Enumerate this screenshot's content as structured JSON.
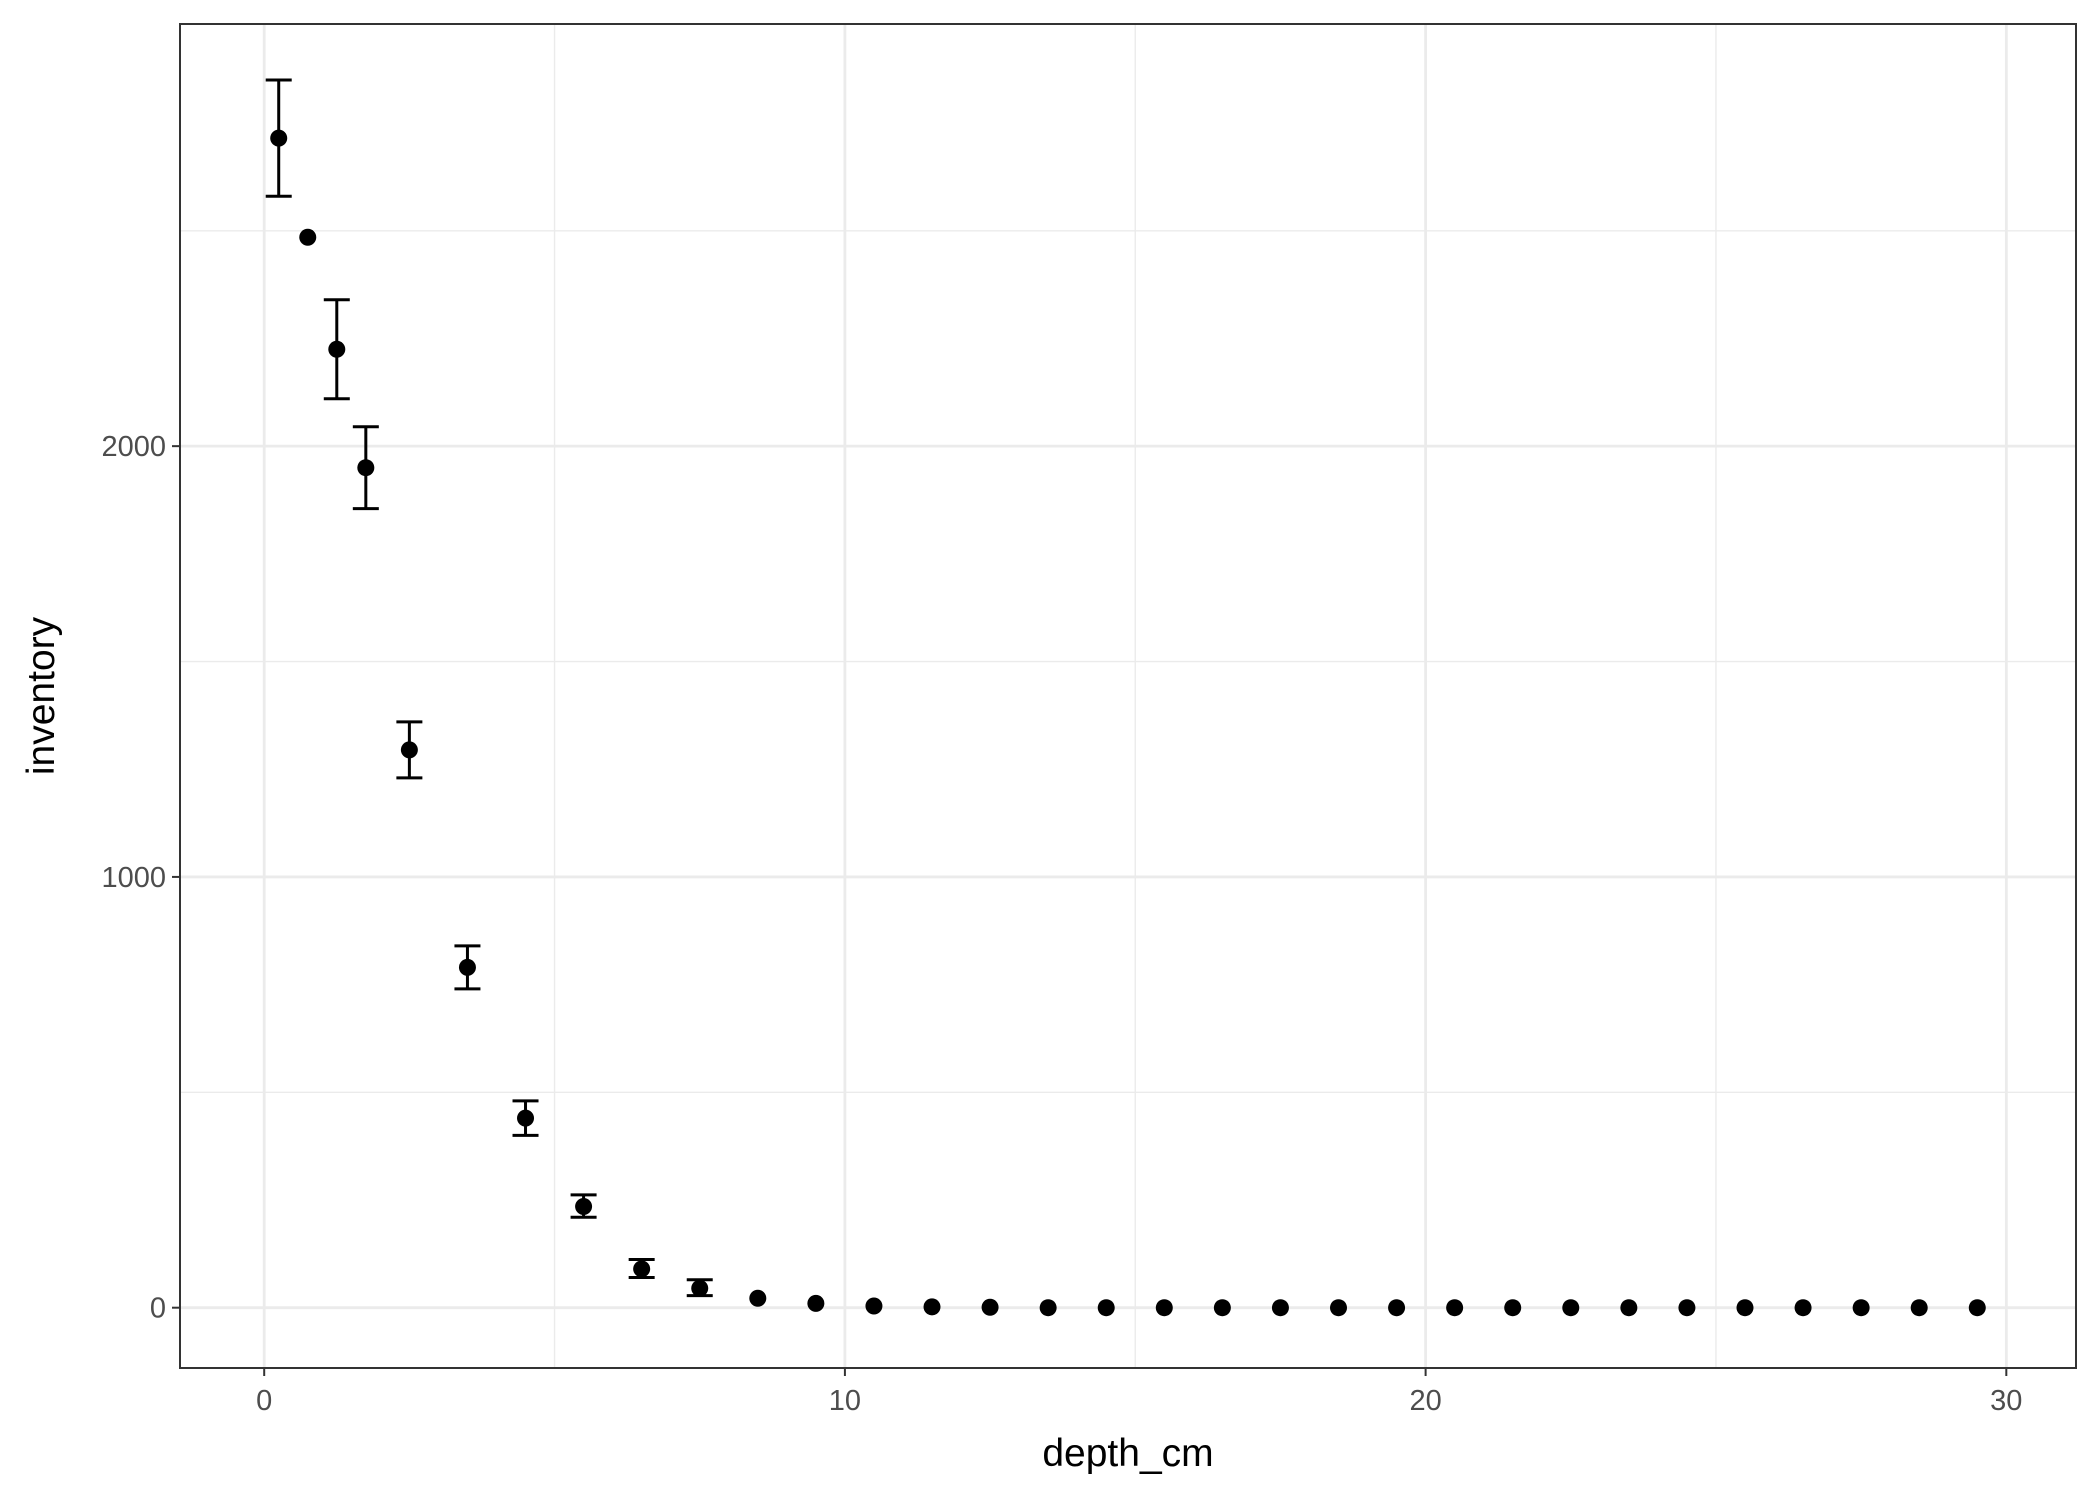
{
  "chart_data": {
    "type": "scatter",
    "xlabel": "depth_cm",
    "ylabel": "inventory",
    "xlim": [
      -1.45,
      31.2
    ],
    "ylim": [
      -140,
      2980
    ],
    "x_ticks": [
      0,
      10,
      20,
      30
    ],
    "x_minor": [
      5,
      15,
      25
    ],
    "y_ticks": [
      0,
      1000,
      2000
    ],
    "y_minor": [
      500,
      1500,
      2500
    ],
    "grid": true,
    "legend": "none",
    "colors": {
      "point": "#000000",
      "grid": "#ebebeb",
      "panel_border": "#333333",
      "background": "#ffffff"
    },
    "points": [
      {
        "x": 0.25,
        "y": 2715,
        "ymin": 2580,
        "ymax": 2850
      },
      {
        "x": 0.75,
        "y": 2485
      },
      {
        "x": 1.25,
        "y": 2225,
        "ymin": 2110,
        "ymax": 2340
      },
      {
        "x": 1.75,
        "y": 1950,
        "ymin": 1855,
        "ymax": 2045
      },
      {
        "x": 2.5,
        "y": 1295,
        "ymin": 1230,
        "ymax": 1360
      },
      {
        "x": 3.5,
        "y": 790,
        "ymin": 740,
        "ymax": 840
      },
      {
        "x": 4.5,
        "y": 440,
        "ymin": 400,
        "ymax": 480
      },
      {
        "x": 5.5,
        "y": 235,
        "ymin": 210,
        "ymax": 262
      },
      {
        "x": 6.5,
        "y": 90,
        "ymin": 70,
        "ymax": 112
      },
      {
        "x": 7.5,
        "y": 45,
        "ymin": 28,
        "ymax": 65
      },
      {
        "x": 8.5,
        "y": 22
      },
      {
        "x": 9.5,
        "y": 10
      },
      {
        "x": 10.5,
        "y": 4
      },
      {
        "x": 11.5,
        "y": 2
      },
      {
        "x": 12.5,
        "y": 1
      },
      {
        "x": 13.5,
        "y": 0
      },
      {
        "x": 14.5,
        "y": 0
      },
      {
        "x": 15.5,
        "y": 0
      },
      {
        "x": 16.5,
        "y": 0
      },
      {
        "x": 17.5,
        "y": 0
      },
      {
        "x": 18.5,
        "y": 0
      },
      {
        "x": 19.5,
        "y": 0
      },
      {
        "x": 20.5,
        "y": 0
      },
      {
        "x": 21.5,
        "y": 0
      },
      {
        "x": 22.5,
        "y": 0
      },
      {
        "x": 23.5,
        "y": 0
      },
      {
        "x": 24.5,
        "y": 0
      },
      {
        "x": 25.5,
        "y": 0
      },
      {
        "x": 26.5,
        "y": 0
      },
      {
        "x": 27.5,
        "y": 0
      },
      {
        "x": 28.5,
        "y": 0
      },
      {
        "x": 29.5,
        "y": 0
      }
    ]
  }
}
